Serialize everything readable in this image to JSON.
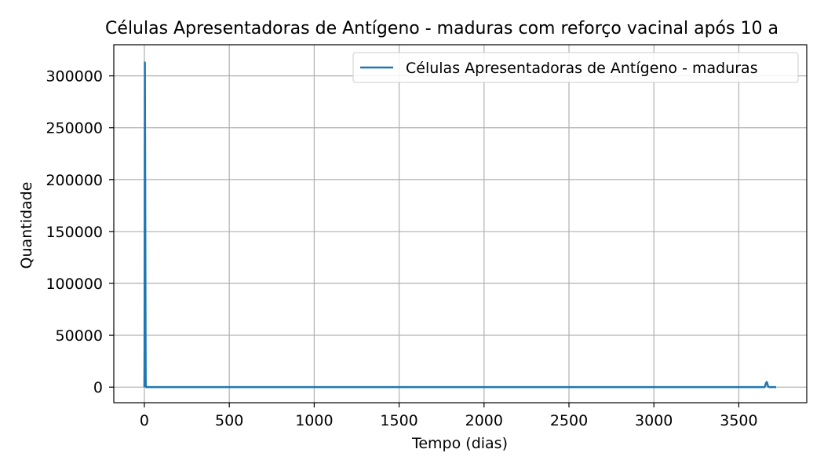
{
  "chart_data": {
    "type": "line",
    "title": "Células Apresentadoras de Antígeno - maduras com reforço vacinal após 10 a",
    "xlabel": "Tempo (dias)",
    "ylabel": "Quantidade",
    "xlim": [
      -180,
      3900
    ],
    "ylim": [
      -15000,
      330000
    ],
    "xticks": [
      0,
      500,
      1000,
      1500,
      2000,
      2500,
      3000,
      3500
    ],
    "yticks": [
      0,
      50000,
      100000,
      150000,
      200000,
      250000,
      300000
    ],
    "xtick_labels": [
      "0",
      "500",
      "1000",
      "1500",
      "2000",
      "2500",
      "3000",
      "3500"
    ],
    "ytick_labels": [
      "0",
      "50000",
      "100000",
      "150000",
      "200000",
      "250000",
      "300000"
    ],
    "grid": true,
    "legend_position": "top-right",
    "series": [
      {
        "name": "Células Apresentadoras de Antígeno - maduras",
        "color": "#1f77b4",
        "x": [
          0,
          1,
          3,
          5,
          7,
          8,
          10,
          500,
          1000,
          1500,
          2000,
          2500,
          3000,
          3500,
          3650,
          3655,
          3660,
          3665,
          3668,
          3672,
          3680,
          3720
        ],
        "y": [
          0,
          40000,
          313000,
          200000,
          60000,
          5000,
          0,
          0,
          0,
          0,
          0,
          0,
          0,
          0,
          0,
          1000,
          4000,
          5000,
          3500,
          800,
          0,
          0
        ]
      }
    ]
  }
}
